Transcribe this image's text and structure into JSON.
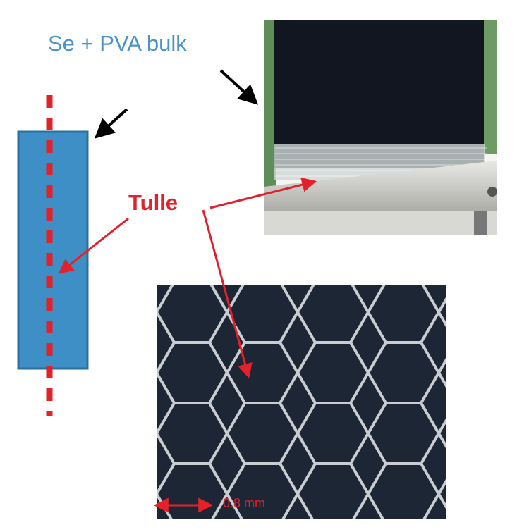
{
  "labels": {
    "bulk": "Se + PVA bulk",
    "tulle": "Tulle",
    "scale": "0.8 mm"
  },
  "colors": {
    "bulk_fill": "#3e8fc6",
    "bulk_border": "#2a6f9e",
    "dash_red": "#e2212a",
    "arrow_red": "#e2212a",
    "arrow_black": "#000000"
  },
  "photos": {
    "top": "photo of dark Se + PVA film on tulle clamped to metal bar",
    "bottom": "close-up photo of hexagonal tulle mesh"
  }
}
